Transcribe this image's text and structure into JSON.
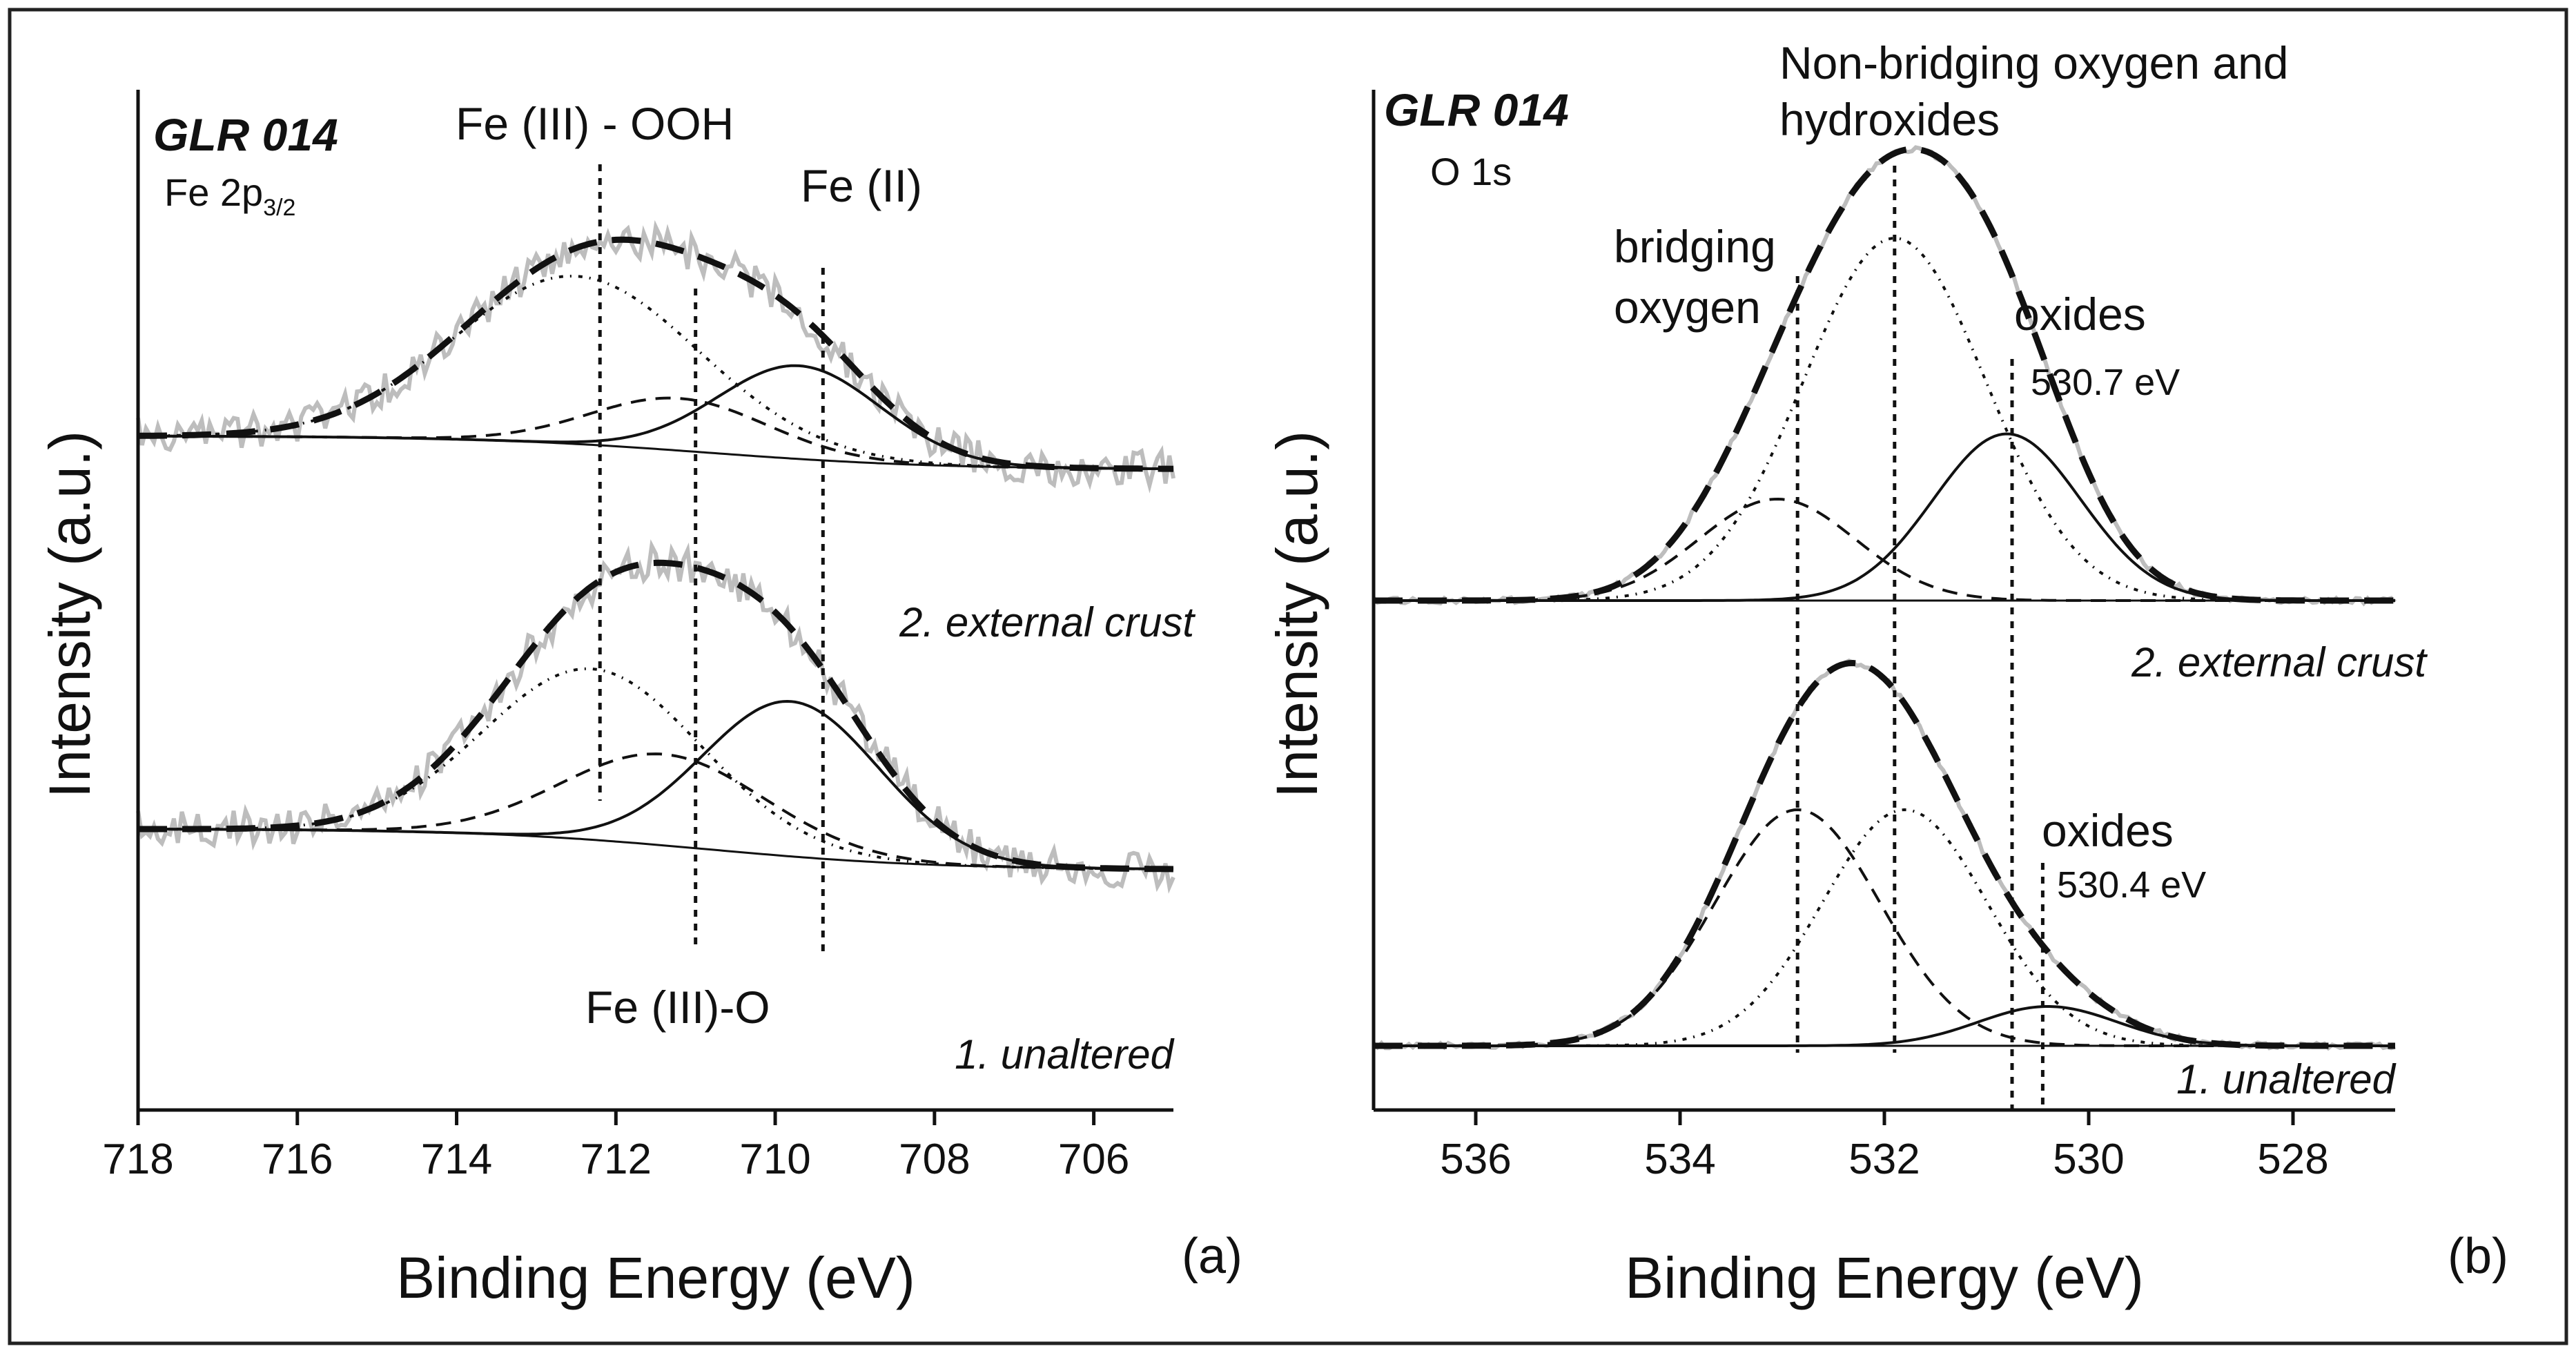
{
  "chart_data": [
    {
      "panel": "(a)",
      "type": "line",
      "sample": "GLR 014",
      "core_level": "Fe 2p",
      "core_level_sub": "3/2",
      "xlabel": "Binding Energy (eV)",
      "ylabel": "Intensity (a.u.)",
      "xlim": [
        718,
        705
      ],
      "xticks": [
        718,
        716,
        714,
        712,
        710,
        708,
        706
      ],
      "grid": false,
      "annotations": {
        "fe3_ooh": "Fe (III) - OOH",
        "fe2": "Fe (II)",
        "fe3_o": "Fe (III)-O"
      },
      "reference_lines_eV": [
        712.2,
        711.0,
        709.4
      ],
      "traces": [
        {
          "name": "2. external crust",
          "components": [
            {
              "name": "Fe (III) - OOH",
              "center_eV": 712.5,
              "fwhm_eV": 3.6,
              "height": 0.9
            },
            {
              "name": "Fe (III)-O",
              "center_eV": 711.2,
              "fwhm_eV": 2.6,
              "height": 0.28
            },
            {
              "name": "Fe (II)",
              "center_eV": 709.7,
              "fwhm_eV": 2.4,
              "height": 0.5
            }
          ]
        },
        {
          "name": "1. unaltered",
          "components": [
            {
              "name": "Fe (III) - OOH",
              "center_eV": 712.3,
              "fwhm_eV": 3.2,
              "height": 0.75
            },
            {
              "name": "Fe (III)-O",
              "center_eV": 711.4,
              "fwhm_eV": 3.0,
              "height": 0.4
            },
            {
              "name": "Fe (II)",
              "center_eV": 709.8,
              "fwhm_eV": 2.6,
              "height": 0.68
            }
          ]
        }
      ]
    },
    {
      "panel": "(b)",
      "type": "line",
      "sample": "GLR 014",
      "core_level": "O 1s",
      "xlabel": "Binding Energy (eV)",
      "ylabel": "Intensity (a.u.)",
      "xlim": [
        537,
        527
      ],
      "xticks": [
        536,
        534,
        532,
        530,
        528
      ],
      "grid": false,
      "annotations": {
        "nbo_line1": "Non-bridging oxygen and",
        "nbo_line2": "hydroxides",
        "bo_line1": "bridging",
        "bo_line2": "oxygen",
        "oxides_top": "oxides",
        "oxides_top_energy": "530.7 eV",
        "oxides_bottom": "oxides",
        "oxides_bottom_energy": "530.4 eV"
      },
      "reference_lines_eV": [
        532.85,
        531.9,
        530.75,
        530.45
      ],
      "traces": [
        {
          "name": "2. external crust",
          "components": [
            {
              "name": "Non-bridging oxygen and hydroxides",
              "center_eV": 531.9,
              "fwhm_eV": 2.1,
              "height": 1.0
            },
            {
              "name": "bridging oxygen",
              "center_eV": 533.05,
              "fwhm_eV": 1.8,
              "height": 0.28
            },
            {
              "name": "oxides",
              "center_eV": 530.8,
              "fwhm_eV": 1.7,
              "height": 0.46
            }
          ]
        },
        {
          "name": "1. unaltered",
          "components": [
            {
              "name": "Non-bridging oxygen and hydroxides",
              "center_eV": 531.8,
              "fwhm_eV": 1.9,
              "height": 0.72
            },
            {
              "name": "bridging oxygen",
              "center_eV": 532.85,
              "fwhm_eV": 1.9,
              "height": 0.72
            },
            {
              "name": "oxides",
              "center_eV": 530.4,
              "fwhm_eV": 1.6,
              "height": 0.12
            }
          ]
        }
      ]
    }
  ]
}
